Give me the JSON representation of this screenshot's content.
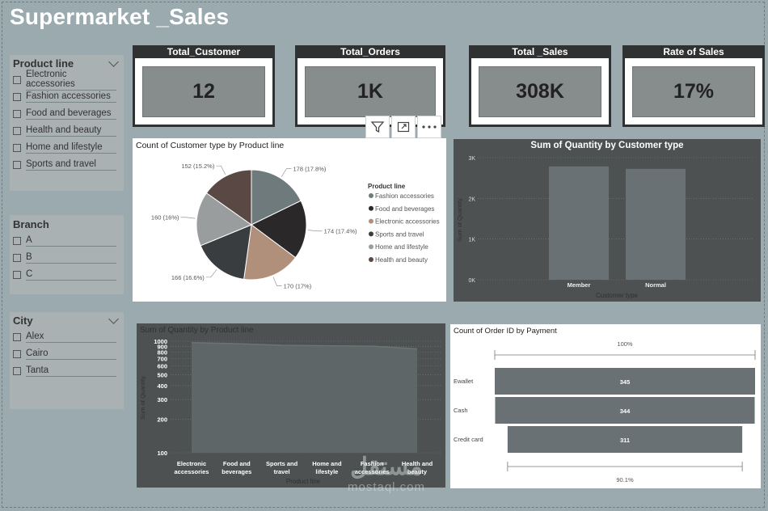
{
  "title": "Supermarket _Sales",
  "slicers": {
    "product_line": {
      "label": "Product line",
      "items": [
        "Electronic accessories",
        "Fashion accessories",
        "Food and beverages",
        "Health and beauty",
        "Home and lifestyle",
        "Sports and travel"
      ]
    },
    "branch": {
      "label": "Branch",
      "items": [
        "A",
        "B",
        "C"
      ]
    },
    "city": {
      "label": "City",
      "items": [
        "Alex",
        "Cairo",
        "Tanta"
      ]
    }
  },
  "kpis": {
    "customer": {
      "label": "Total_Customer",
      "value": "12"
    },
    "orders": {
      "label": "Total_Orders",
      "value": "1K"
    },
    "sales": {
      "label": "Total _Sales",
      "value": "308K"
    },
    "rate": {
      "label": "Rate of Sales",
      "value": "17%"
    }
  },
  "toolbar": {
    "icons": [
      "filter-icon",
      "focus-mode-icon",
      "more-options-icon"
    ]
  },
  "chart_data": [
    {
      "type": "pie",
      "title": "Count of Customer type by Product line",
      "legend_title": "Product line",
      "legend_placement": "right",
      "slices": [
        {
          "name": "Fashion accessories",
          "value": 178,
          "label": "178 (17.8%)",
          "color": "#6f7a7c"
        },
        {
          "name": "Food and beverages",
          "value": 174,
          "label": "174 (17.4%)",
          "color": "#2a2828"
        },
        {
          "name": "Electronic accessories",
          "value": 170,
          "label": "170 (17%)",
          "color": "#b0907a"
        },
        {
          "name": "Sports and travel",
          "value": 166,
          "label": "166 (16.6%)",
          "color": "#3a3d40"
        },
        {
          "name": "Home and lifestyle",
          "value": 160,
          "label": "160 (16%)",
          "color": "#9a9d9e"
        },
        {
          "name": "Health and beauty",
          "value": 152,
          "label": "152 (15.2%)",
          "color": "#5a4844"
        }
      ]
    },
    {
      "type": "bar",
      "title": "Sum of Quantity by Customer type",
      "categories": [
        "Member",
        "Normal"
      ],
      "values": [
        2785,
        2725
      ],
      "ylim": [
        0,
        3000
      ],
      "yticks": [
        "0K",
        "1K",
        "2K",
        "3K"
      ],
      "xlabel": "Customer type",
      "ylabel": "Sum of Quantity"
    },
    {
      "type": "area",
      "title": "Sum of Quantity by Product line",
      "categories": [
        "Electronic accessories",
        "Food and beverages",
        "Sports and travel",
        "Home and lifestyle",
        "Fashion accessories",
        "Health and beauty"
      ],
      "values": [
        971,
        952,
        920,
        911,
        902,
        854
      ],
      "scale": "log",
      "ylim": [
        100,
        1000
      ],
      "yticks": [
        "1000",
        "900",
        "800",
        "700",
        "600",
        "500",
        "400",
        "300",
        "200",
        "100"
      ],
      "xlabel": "Product line",
      "ylabel": "Sum of Quantity"
    },
    {
      "type": "bar",
      "orientation": "horizontal",
      "title": "Count of Order ID by Payment",
      "categories": [
        "Ewallet",
        "Cash",
        "Credit card"
      ],
      "values": [
        345,
        344,
        311
      ],
      "top_label": "100%",
      "bottom_label": "90.1%"
    }
  ],
  "watermark": {
    "arabic": "مستقل",
    "latin": "mostaql.com"
  }
}
